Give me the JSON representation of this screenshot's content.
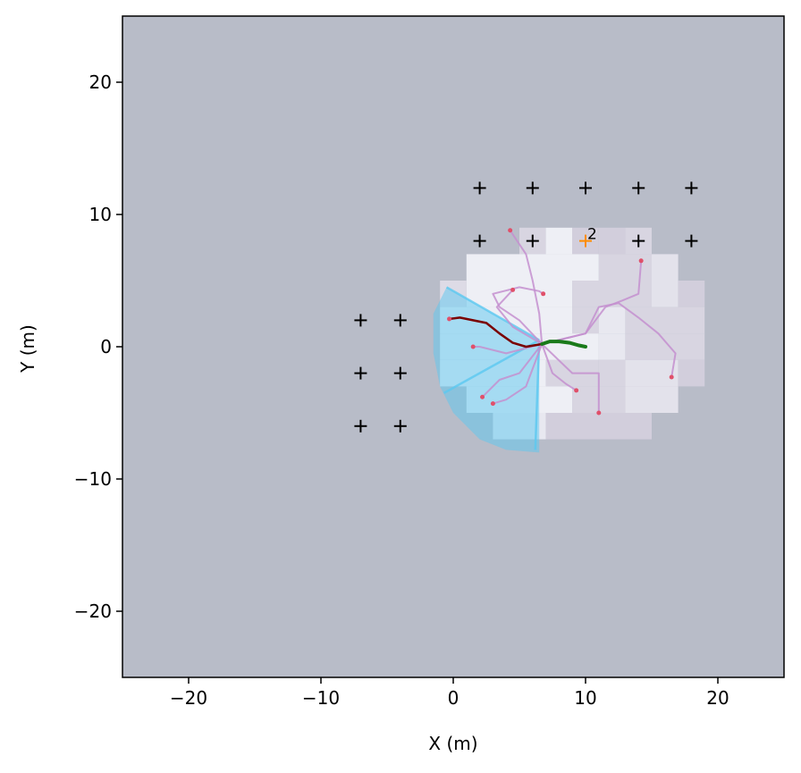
{
  "chart_data": {
    "type": "scatter",
    "title": "",
    "xlabel": "X (m)",
    "ylabel": "Y (m)",
    "xlim": [
      -25,
      25
    ],
    "ylim": [
      -25,
      25
    ],
    "xticks": [
      -20,
      -10,
      0,
      10,
      20
    ],
    "yticks": [
      -20,
      -10,
      0,
      10,
      20
    ],
    "xtick_labels": [
      "−20",
      "−10",
      "0",
      "10",
      "20"
    ],
    "ytick_labels": [
      "−20",
      "−10",
      "0",
      "10",
      "20"
    ],
    "grid": false,
    "background_color": "#b8bcc8",
    "colors": {
      "markers": "#000000",
      "highlight_marker": "#ff8c00",
      "sensor_fan": "#5bc8f0",
      "candidate_paths": "#c48fcf",
      "path_endpoints": "#e0506a",
      "chosen_path": "#7a0000",
      "trajectory": "#1a7a1a"
    },
    "markers": [
      [
        2,
        12
      ],
      [
        6,
        12
      ],
      [
        10,
        12
      ],
      [
        14,
        12
      ],
      [
        18,
        12
      ],
      [
        2,
        8
      ],
      [
        6,
        8
      ],
      [
        14,
        8
      ],
      [
        18,
        8
      ],
      [
        -7,
        2
      ],
      [
        -4,
        2
      ],
      [
        -7,
        -2
      ],
      [
        -4,
        -2
      ],
      [
        -7,
        -6
      ],
      [
        -4,
        -6
      ]
    ],
    "highlight_marker": {
      "x": 10,
      "y": 8,
      "label": "2"
    },
    "explored_cells": [
      {
        "x": 5,
        "y": 7,
        "w": 2,
        "h": 2,
        "v": 0.25
      },
      {
        "x": 7,
        "y": 7,
        "w": 2,
        "h": 2,
        "v": 0.05
      },
      {
        "x": 9,
        "y": 7,
        "w": 2,
        "h": 2,
        "v": 0.3
      },
      {
        "x": 11,
        "y": 7,
        "w": 2,
        "h": 2,
        "v": 0.3
      },
      {
        "x": 13,
        "y": 7,
        "w": 2,
        "h": 2,
        "v": 0.25
      },
      {
        "x": 1,
        "y": 5,
        "w": 10,
        "h": 2,
        "v": 0.05
      },
      {
        "x": 11,
        "y": 5,
        "w": 4,
        "h": 2,
        "v": 0.25
      },
      {
        "x": 15,
        "y": 5,
        "w": 2,
        "h": 2,
        "v": 0.15
      },
      {
        "x": 1,
        "y": 3,
        "w": 8,
        "h": 2,
        "v": 0.05
      },
      {
        "x": -1,
        "y": 3,
        "w": 2,
        "h": 2,
        "v": 0.2
      },
      {
        "x": 9,
        "y": 3,
        "w": 6,
        "h": 2,
        "v": 0.25
      },
      {
        "x": 15,
        "y": 3,
        "w": 2,
        "h": 2,
        "v": 0.15
      },
      {
        "x": 17,
        "y": 3,
        "w": 2,
        "h": 2,
        "v": 0.3
      },
      {
        "x": -1,
        "y": 1,
        "w": 10,
        "h": 2,
        "v": 0.05
      },
      {
        "x": 9,
        "y": 1,
        "w": 2,
        "h": 2,
        "v": 0.25
      },
      {
        "x": 11,
        "y": 1,
        "w": 2,
        "h": 2,
        "v": 0.1
      },
      {
        "x": 13,
        "y": 1,
        "w": 6,
        "h": 2,
        "v": 0.25
      },
      {
        "x": -1,
        "y": -1,
        "w": 12,
        "h": 2,
        "v": 0.05
      },
      {
        "x": 11,
        "y": -1,
        "w": 2,
        "h": 2,
        "v": 0.1
      },
      {
        "x": 13,
        "y": -1,
        "w": 6,
        "h": 2,
        "v": 0.25
      },
      {
        "x": -1,
        "y": -3,
        "w": 8,
        "h": 2,
        "v": 0.05
      },
      {
        "x": 7,
        "y": -3,
        "w": 4,
        "h": 2,
        "v": 0.25
      },
      {
        "x": 11,
        "y": -3,
        "w": 2,
        "h": 2,
        "v": 0.25
      },
      {
        "x": 13,
        "y": -3,
        "w": 4,
        "h": 2,
        "v": 0.15
      },
      {
        "x": 17,
        "y": -3,
        "w": 2,
        "h": 2,
        "v": 0.3
      },
      {
        "x": 1,
        "y": -5,
        "w": 8,
        "h": 2,
        "v": 0.05
      },
      {
        "x": 9,
        "y": -5,
        "w": 4,
        "h": 2,
        "v": 0.25
      },
      {
        "x": 13,
        "y": -5,
        "w": 4,
        "h": 2,
        "v": 0.15
      },
      {
        "x": 3,
        "y": -7,
        "w": 4,
        "h": 2,
        "v": 0.1
      },
      {
        "x": 7,
        "y": -7,
        "w": 8,
        "h": 2,
        "v": 0.3
      }
    ],
    "sensor_fan": {
      "origin": [
        6.5,
        0.5
      ],
      "outer": [
        [
          -0.5,
          4.5
        ],
        [
          -1.5,
          2.5
        ],
        [
          -1.5,
          -0.5
        ],
        [
          -1,
          -3
        ],
        [
          0,
          -5
        ],
        [
          2,
          -7
        ],
        [
          4,
          -7.8
        ],
        [
          6.5,
          -8
        ]
      ],
      "rays": [
        [
          [
            6.5,
            0.5
          ],
          [
            -0.5,
            4.5
          ]
        ],
        [
          [
            6.5,
            0.5
          ],
          [
            -0.7,
            -3.5
          ]
        ],
        [
          [
            6.5,
            0.5
          ],
          [
            6.2,
            -7.8
          ]
        ]
      ]
    },
    "candidate_paths": [
      [
        [
          6.7,
          0.2
        ],
        [
          5,
          2
        ],
        [
          3.5,
          3
        ],
        [
          3,
          4
        ],
        [
          5,
          4.5
        ],
        [
          6.5,
          4.2
        ],
        [
          6.8,
          4
        ]
      ],
      [
        [
          6.7,
          0.2
        ],
        [
          6.5,
          2.5
        ],
        [
          6,
          5
        ],
        [
          5.5,
          7
        ],
        [
          4.3,
          8.8
        ]
      ],
      [
        [
          6.7,
          0.2
        ],
        [
          4,
          -0.5
        ],
        [
          2,
          0
        ],
        [
          1.5,
          0
        ]
      ],
      [
        [
          6.7,
          0.2
        ],
        [
          5,
          -2
        ],
        [
          3.5,
          -2.5
        ],
        [
          2.2,
          -3.8
        ]
      ],
      [
        [
          6.7,
          0.2
        ],
        [
          5.5,
          -3
        ],
        [
          4,
          -4
        ],
        [
          3,
          -4.3
        ]
      ],
      [
        [
          6.7,
          0.2
        ],
        [
          7.5,
          -2
        ],
        [
          8.5,
          -2.8
        ],
        [
          9.3,
          -3.3
        ]
      ],
      [
        [
          6.7,
          0.2
        ],
        [
          9,
          -2
        ],
        [
          11,
          -2
        ],
        [
          11,
          -5
        ]
      ],
      [
        [
          6.7,
          0.2
        ],
        [
          10,
          1
        ],
        [
          11,
          3
        ],
        [
          12.5,
          3.3
        ],
        [
          14,
          2.2
        ],
        [
          15.5,
          1
        ],
        [
          16.8,
          -0.5
        ],
        [
          16.5,
          -2.3
        ]
      ],
      [
        [
          6.7,
          0.2
        ],
        [
          10,
          1
        ],
        [
          11.5,
          3
        ],
        [
          12.8,
          3.5
        ],
        [
          14,
          4
        ],
        [
          14.2,
          6.5
        ]
      ],
      [
        [
          6.7,
          0.2
        ],
        [
          4.5,
          1.5
        ],
        [
          3.3,
          3
        ],
        [
          4.5,
          4.3
        ]
      ]
    ],
    "path_endpoints": [
      [
        4.3,
        8.8
      ],
      [
        6.8,
        4
      ],
      [
        4.5,
        4.3
      ],
      [
        14.2,
        6.5
      ],
      [
        -0.3,
        2.1
      ],
      [
        1.5,
        0
      ],
      [
        2.2,
        -3.8
      ],
      [
        3,
        -4.3
      ],
      [
        9.3,
        -3.3
      ],
      [
        11,
        -5
      ],
      [
        16.5,
        -2.3
      ]
    ],
    "chosen_path": [
      [
        -0.3,
        2.1
      ],
      [
        0.5,
        2.2
      ],
      [
        1.5,
        2
      ],
      [
        2.5,
        1.8
      ],
      [
        3.5,
        1
      ],
      [
        4.5,
        0.3
      ],
      [
        5.5,
        0
      ],
      [
        6.7,
        0.2
      ]
    ],
    "trajectory": [
      [
        6.7,
        0.2
      ],
      [
        7.3,
        0.4
      ],
      [
        8,
        0.4
      ],
      [
        8.8,
        0.3
      ],
      [
        9.5,
        0.1
      ],
      [
        10,
        0
      ]
    ]
  }
}
